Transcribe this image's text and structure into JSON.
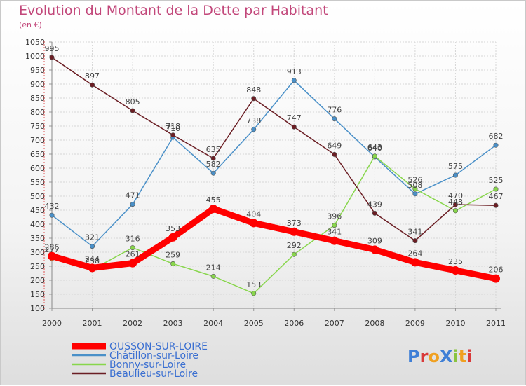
{
  "title": "Evolution du Montant de la Dette par Habitant",
  "unit": "(en €)",
  "logo_text": "ProXiti",
  "chart_data": {
    "type": "line",
    "x": [
      "2000",
      "2001",
      "2002",
      "2003",
      "2004",
      "2005",
      "2006",
      "2007",
      "2008",
      "2009",
      "2010",
      "2011"
    ],
    "ylim": [
      100,
      1050
    ],
    "yticks": [
      100,
      150,
      200,
      250,
      300,
      350,
      400,
      450,
      500,
      550,
      600,
      650,
      700,
      750,
      800,
      850,
      900,
      950,
      1000,
      1050
    ],
    "grid": true,
    "legend_position": "bottom-left",
    "series": [
      {
        "name": "OUSSON-SUR-LOIRE",
        "color": "#ff0000",
        "values": [
          286,
          244,
          261,
          353,
          455,
          404,
          373,
          341,
          309,
          264,
          235,
          206
        ]
      },
      {
        "name": "Châtillon-sur-Loire",
        "color": "#4a90c8",
        "values": [
          432,
          321,
          471,
          710,
          582,
          738,
          913,
          776,
          640,
          508,
          575,
          682
        ]
      },
      {
        "name": "Bonny-sur-Loire",
        "color": "#88d64c",
        "values": [
          277,
          238,
          316,
          259,
          214,
          153,
          292,
          396,
          643,
          526,
          448,
          525
        ]
      },
      {
        "name": "Beaulieu-sur-Loire",
        "color": "#6b1e24",
        "values": [
          995,
          897,
          805,
          718,
          635,
          848,
          747,
          649,
          439,
          341,
          470,
          467
        ]
      }
    ]
  }
}
